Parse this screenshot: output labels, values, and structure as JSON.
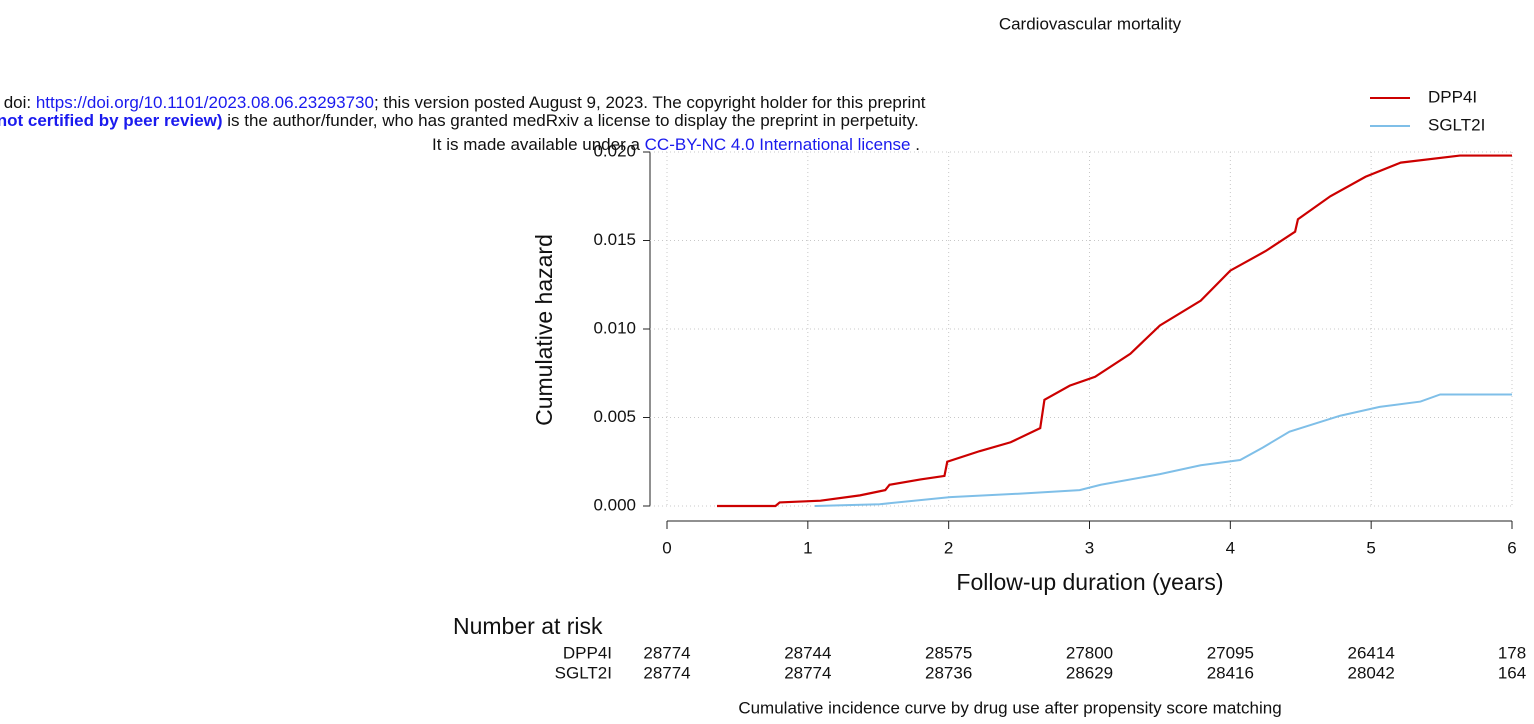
{
  "banner": {
    "line1": [
      "medRxiv preprint doi: ",
      "https://doi.org/10.1101/2023.08.06.23293730",
      "; this version posted August 9, 2023. The copyright holder for this preprint"
    ],
    "line2": [
      "(which was not certified by peer review)",
      " is the author/funder, who has granted medRxiv a license to display the preprint in perpetuity."
    ],
    "line3": [
      "It is made available under a ",
      "CC-BY-NC 4.0 International license",
      " ."
    ]
  },
  "chart_data": {
    "type": "line",
    "title": "Cardiovascular mortality",
    "xlabel": "Follow-up duration (years)",
    "ylabel": "Cumulative hazard",
    "note": "Cumulative incidence curve by drug use after propensity score matching",
    "xlim": [
      0,
      6
    ],
    "xticks": [
      0,
      1,
      2,
      3,
      4,
      5,
      6
    ],
    "ylim": [
      0,
      0.02
    ],
    "yticks": [
      {
        "value": 0,
        "label": "0.000"
      },
      {
        "value": 0.005,
        "label": "0.005"
      },
      {
        "value": 0.01,
        "label": "0.010"
      },
      {
        "value": 0.015,
        "label": "0.015"
      },
      {
        "value": 0.02,
        "label": "0.020"
      }
    ],
    "grid": true,
    "legend": "top-right",
    "series": [
      {
        "name": "DPP4I",
        "color": "#cc0000",
        "x": [
          0.355,
          0.77,
          0.8,
          1.09,
          1.37,
          1.55,
          1.58,
          1.8,
          1.97,
          1.99,
          2.22,
          2.44,
          2.65,
          2.68,
          2.86,
          3.04,
          3.29,
          3.5,
          3.79,
          4.0,
          4.25,
          4.46,
          4.48,
          4.71,
          4.96,
          5.21,
          5.63,
          6.0
        ],
        "values": [
          0,
          0,
          0.0002,
          0.0003,
          0.0006,
          0.0009,
          0.0012,
          0.0015,
          0.0017,
          0.0025,
          0.0031,
          0.0036,
          0.0044,
          0.006,
          0.0068,
          0.0073,
          0.0086,
          0.0102,
          0.0116,
          0.0133,
          0.0144,
          0.0155,
          0.0162,
          0.0175,
          0.0186,
          0.0194,
          0.0198,
          0.0198
        ]
      },
      {
        "name": "SGLT2I",
        "color": "#7fbfe8",
        "x": [
          1.05,
          1.51,
          2.01,
          2.51,
          2.93,
          3.08,
          3.5,
          3.79,
          4.07,
          4.23,
          4.42,
          4.78,
          5.06,
          5.35,
          5.49,
          6.0
        ],
        "values": [
          0,
          0.0001,
          0.0005,
          0.0007,
          0.0009,
          0.0012,
          0.0018,
          0.0023,
          0.0026,
          0.0033,
          0.0042,
          0.0051,
          0.0056,
          0.0059,
          0.0063,
          0.0063
        ]
      }
    ],
    "risk_table": {
      "title": "Number at risk",
      "rows": [
        {
          "name": "DPP4I",
          "values": [
            "28774",
            "28744",
            "28575",
            "27800",
            "27095",
            "26414",
            "178"
          ]
        },
        {
          "name": "SGLT2I",
          "values": [
            "28774",
            "28774",
            "28736",
            "28629",
            "28416",
            "28042",
            "164"
          ]
        }
      ]
    }
  }
}
